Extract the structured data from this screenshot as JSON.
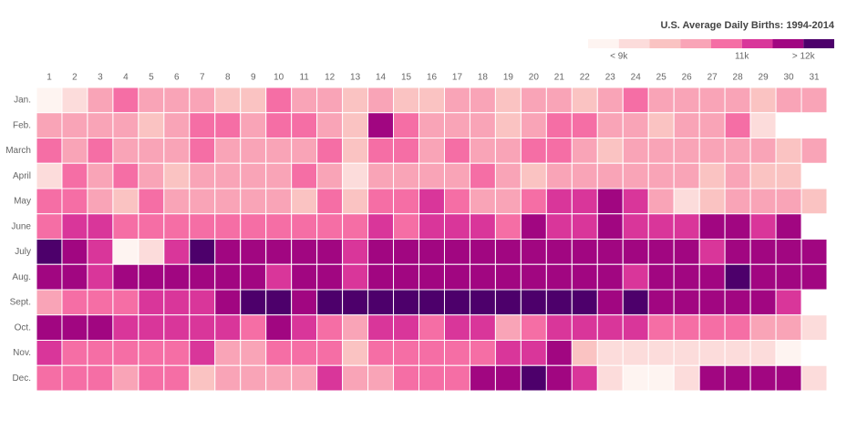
{
  "chart_data": {
    "type": "heatmap",
    "title": "U.S. Average Daily Births: 1994-2014",
    "x": [
      1,
      2,
      3,
      4,
      5,
      6,
      7,
      8,
      9,
      10,
      11,
      12,
      13,
      14,
      15,
      16,
      17,
      18,
      19,
      20,
      21,
      22,
      23,
      24,
      25,
      26,
      27,
      28,
      29,
      30,
      31
    ],
    "categories": [
      "Jan.",
      "Feb.",
      "March",
      "April",
      "May",
      "June",
      "July",
      "Aug.",
      "Sept.",
      "Oct.",
      "Nov.",
      "Dec."
    ],
    "colors": [
      "#fef4f1",
      "#fcdcdb",
      "#fac3c2",
      "#f9a4b7",
      "#f56ea5",
      "#d9369a",
      "#a10681",
      "#4d006b"
    ],
    "zlim": [
      8500,
      12500
    ],
    "zticks": [
      {
        "value": 9000,
        "label": "< 9k"
      },
      {
        "value": 11000,
        "label": "11k"
      },
      {
        "value": 12000,
        "label": "> 12k"
      }
    ],
    "z": [
      [
        8750,
        9250,
        10250,
        10750,
        10250,
        10250,
        10250,
        9750,
        9750,
        10750,
        10250,
        10250,
        9750,
        10250,
        9750,
        9750,
        10250,
        10250,
        9750,
        10250,
        10250,
        9750,
        10250,
        10750,
        10250,
        10250,
        10250,
        10250,
        9750,
        10250,
        10250
      ],
      [
        10250,
        10250,
        10250,
        10250,
        9750,
        10250,
        10750,
        10750,
        10250,
        10750,
        10750,
        10250,
        9750,
        11750,
        10750,
        10250,
        10250,
        10250,
        9750,
        10250,
        10750,
        10750,
        10250,
        10250,
        9750,
        10250,
        10250,
        10750,
        9250,
        null,
        null
      ],
      [
        10750,
        10250,
        10750,
        10250,
        10250,
        10250,
        10750,
        10250,
        10250,
        10250,
        10250,
        10750,
        9750,
        10750,
        10750,
        10250,
        10750,
        10250,
        10250,
        10750,
        10750,
        10250,
        9750,
        10250,
        10250,
        10250,
        10250,
        10250,
        10250,
        9750,
        10250
      ],
      [
        9250,
        10750,
        10250,
        10750,
        10250,
        9750,
        10250,
        10250,
        10250,
        10250,
        10750,
        10250,
        9250,
        10250,
        10250,
        10250,
        10250,
        10750,
        10250,
        9750,
        10250,
        10250,
        10250,
        10250,
        10250,
        10250,
        9750,
        10250,
        9750,
        9750,
        null
      ],
      [
        10750,
        10750,
        10250,
        9750,
        10750,
        10250,
        10250,
        10250,
        10250,
        10250,
        9750,
        10750,
        9750,
        10750,
        10750,
        11250,
        10750,
        10250,
        10250,
        10750,
        11250,
        11250,
        11750,
        11250,
        10250,
        9250,
        9750,
        10250,
        10250,
        10250,
        9750
      ],
      [
        10750,
        11250,
        11250,
        10750,
        10750,
        10750,
        10750,
        10750,
        10750,
        10750,
        10750,
        10750,
        10750,
        11250,
        10750,
        11250,
        11250,
        11250,
        10750,
        11750,
        11250,
        11250,
        11750,
        11250,
        11250,
        11250,
        11750,
        11750,
        11250,
        11750,
        null
      ],
      [
        12250,
        11750,
        11250,
        8750,
        9250,
        11250,
        12250,
        11750,
        11750,
        11750,
        11750,
        11750,
        11250,
        11750,
        11750,
        11750,
        11750,
        11750,
        11750,
        11750,
        11750,
        11750,
        11750,
        11750,
        11750,
        11750,
        11250,
        11750,
        11750,
        11750,
        11750
      ],
      [
        11750,
        11750,
        11250,
        11750,
        11750,
        11750,
        11750,
        11750,
        11750,
        11250,
        11750,
        11750,
        11250,
        11750,
        11750,
        11750,
        11750,
        11750,
        11750,
        11750,
        11750,
        11750,
        11750,
        11250,
        11750,
        11750,
        11750,
        12250,
        11750,
        11750,
        11750
      ],
      [
        10250,
        10750,
        10750,
        10750,
        11250,
        11250,
        11250,
        11750,
        12250,
        12250,
        11750,
        12250,
        12250,
        12250,
        12250,
        12250,
        12250,
        12250,
        12250,
        12250,
        12250,
        12250,
        11750,
        12250,
        11750,
        11750,
        11750,
        11750,
        11750,
        11250,
        null
      ],
      [
        11750,
        11750,
        11750,
        11250,
        11250,
        11250,
        11250,
        11250,
        10750,
        11750,
        11250,
        10750,
        10250,
        11250,
        11250,
        10750,
        11250,
        11250,
        10250,
        10750,
        11250,
        11250,
        11250,
        11250,
        10750,
        10750,
        10750,
        10750,
        10250,
        10250,
        9250
      ],
      [
        11250,
        10750,
        10750,
        10750,
        10750,
        10750,
        11250,
        10250,
        10250,
        10750,
        10750,
        10750,
        9750,
        10750,
        10750,
        10750,
        10750,
        10750,
        11250,
        11250,
        11750,
        9750,
        9250,
        9250,
        9250,
        9250,
        9250,
        9250,
        9250,
        8750,
        null
      ],
      [
        10750,
        10750,
        10750,
        10250,
        10750,
        10750,
        9750,
        10250,
        10250,
        10250,
        10250,
        11250,
        10250,
        10250,
        10750,
        10750,
        10750,
        11750,
        11750,
        12250,
        11750,
        11250,
        9250,
        8750,
        8750,
        9250,
        11750,
        11750,
        11750,
        11750,
        9250
      ]
    ]
  }
}
